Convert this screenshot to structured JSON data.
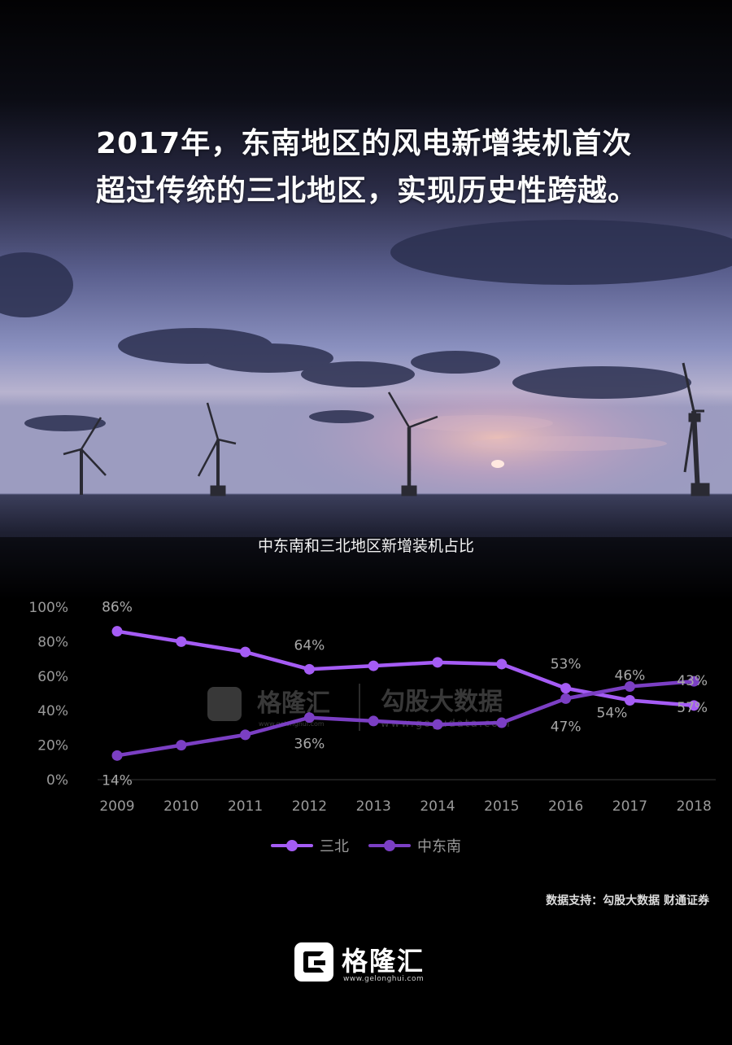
{
  "headline": "2017年，东南地区的风电新增装机首次超过传统的三北地区，实现历史性跨越。",
  "chart_data": {
    "type": "line",
    "title": "中东南和三北地区新增装机占比",
    "categories": [
      "2009",
      "2010",
      "2011",
      "2012",
      "2013",
      "2014",
      "2015",
      "2016",
      "2017",
      "2018"
    ],
    "y_ticks": [
      "0%",
      "20%",
      "40%",
      "60%",
      "80%",
      "100%"
    ],
    "ylim": [
      0,
      100
    ],
    "grid": false,
    "legend_position": "bottom-center",
    "series": [
      {
        "name": "三北",
        "color": "#a55cf5",
        "values": [
          86,
          80,
          74,
          64,
          66,
          68,
          67,
          53,
          46,
          43
        ],
        "point_labels": [
          {
            "index": 0,
            "text": "86%"
          },
          {
            "index": 3,
            "text": "64%"
          },
          {
            "index": 7,
            "text": "53%"
          },
          {
            "index": 8,
            "text": "46%"
          },
          {
            "index": 9,
            "text": "43%"
          }
        ]
      },
      {
        "name": "中东南",
        "color": "#7b3fc4",
        "values": [
          14,
          20,
          26,
          36,
          34,
          32,
          33,
          47,
          54,
          57
        ],
        "point_labels": [
          {
            "index": 0,
            "text": "14%"
          },
          {
            "index": 3,
            "text": "36%"
          },
          {
            "index": 7,
            "text": "47%"
          },
          {
            "index": 8,
            "text": "54%"
          },
          {
            "index": 9,
            "text": "57%"
          }
        ]
      }
    ]
  },
  "watermark": {
    "brand": "格隆汇",
    "brand_url": "www.gelonghui.com",
    "partner": "勾股大数据",
    "partner_url": "www.gogudata.com"
  },
  "source": "数据支持：勾股大数据 财通证券",
  "footer": {
    "brand": "格隆汇",
    "url": "www.gelonghui.com"
  }
}
